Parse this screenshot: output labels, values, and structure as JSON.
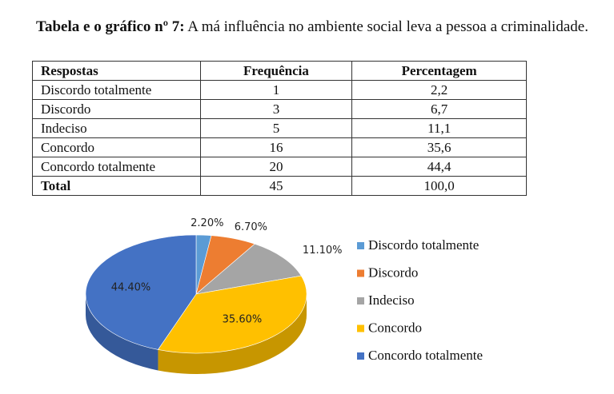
{
  "title_label": "Tabela e o gráfico nº 7:",
  "title_text": "A má influência no ambiente social leva a pessoa a criminalidade.",
  "table": {
    "header": [
      "Respostas",
      "Frequência",
      "Percentagem"
    ],
    "rows": [
      [
        "Discordo totalmente",
        "1",
        "2,2"
      ],
      [
        "Discordo",
        "3",
        "6,7"
      ],
      [
        "Indeciso",
        "5",
        "11,1"
      ],
      [
        "Concordo",
        "16",
        "35,6"
      ],
      [
        "Concordo totalmente",
        "20",
        "44,4"
      ],
      [
        "Total",
        "45",
        "100,0"
      ]
    ]
  },
  "chart_data": {
    "type": "pie",
    "categories": [
      "Discordo totalmente",
      "Discordo",
      "Indeciso",
      "Concordo",
      "Concordo totalmente"
    ],
    "values": [
      2.2,
      6.7,
      11.1,
      35.6,
      44.4
    ],
    "value_labels": [
      "2.20%",
      "6.70%",
      "11.10%",
      "35.60%",
      "44.40%"
    ],
    "colors": [
      "#5b9bd5",
      "#ed7d31",
      "#a5a5a5",
      "#ffc000",
      "#4472c4"
    ],
    "legend": "right"
  }
}
